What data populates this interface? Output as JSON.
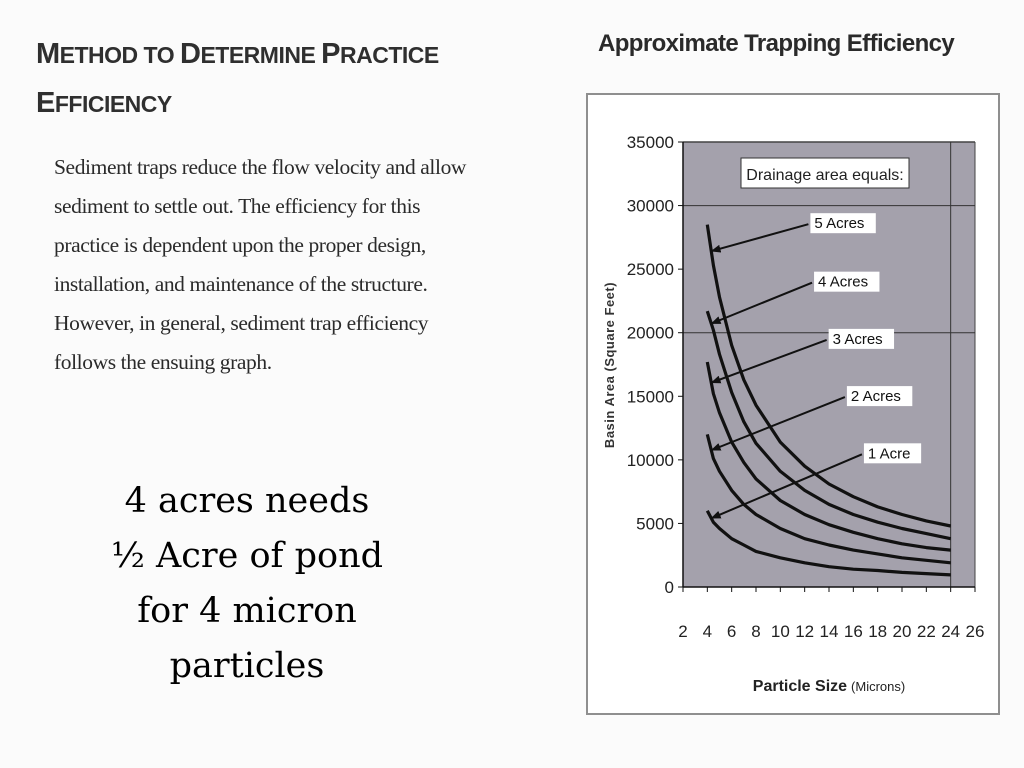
{
  "left_panel": {
    "heading_line1_a": "M",
    "heading_line1_b": "ETHOD TO ",
    "heading_line1_c": "D",
    "heading_line1_d": "ETERMINE ",
    "heading_line1_e": "P",
    "heading_line1_f": "RACTICE",
    "heading_line2_a": "E",
    "heading_line2_b": "FFICIENCY",
    "intro_text": "Sediment traps reduce the flow velocity and allow sediment to settle out.  The efficiency for this practice is dependent upon the proper design, installation, and maintenance of the structure.  However, in general, sediment trap efficiency follows the ensuing graph.",
    "callout_line1": "4 acres needs",
    "callout_line2": "½ Acre of pond",
    "callout_line3": "for 4 micron",
    "callout_line4": "particles"
  },
  "colors": {
    "plot_background": "#a4a1ac",
    "curve": "#111111",
    "frame": "#8f8f8f"
  },
  "chart_data": {
    "type": "line",
    "title": "Approximate Trapping Efficiency",
    "xlabel_main": "Particle Size",
    "xlabel_unit": "(Microns)",
    "ylabel": "Basin Area (Square Feet)",
    "legend_title": "Drainage area equals:",
    "xlim": [
      2,
      26
    ],
    "ylim": [
      0,
      35000
    ],
    "x_ticks": [
      2,
      4,
      6,
      8,
      10,
      12,
      14,
      16,
      18,
      20,
      22,
      24,
      26
    ],
    "y_ticks": [
      0,
      5000,
      10000,
      15000,
      20000,
      25000,
      30000,
      35000
    ],
    "x_tick_labels": [
      "2",
      "4",
      "6",
      "8",
      "10",
      "12",
      "14",
      "16",
      "18",
      "20",
      "22",
      "24",
      "26"
    ],
    "y_tick_labels": [
      "0",
      "5000",
      "10000",
      "15000",
      "20000",
      "25000",
      "30000",
      "35000"
    ],
    "gridlines_y": [
      20000,
      30000
    ],
    "grid_x_right": 24,
    "x": [
      4,
      4.5,
      5,
      6,
      7,
      8,
      10,
      12,
      14,
      16,
      18,
      20,
      22,
      24
    ],
    "series": [
      {
        "name": "5 Acres",
        "values": [
          28500,
          25300,
          22800,
          19000,
          16300,
          14300,
          11400,
          9500,
          8100,
          7100,
          6300,
          5700,
          5200,
          4800
        ]
      },
      {
        "name": "4 Acres",
        "values": [
          21700,
          20200,
          18300,
          15300,
          13000,
          11300,
          9100,
          7600,
          6500,
          5700,
          5100,
          4600,
          4200,
          3800
        ]
      },
      {
        "name": "3 Acres",
        "values": [
          17700,
          15200,
          13700,
          11400,
          9800,
          8500,
          6800,
          5700,
          4900,
          4300,
          3800,
          3400,
          3100,
          2900
        ]
      },
      {
        "name": "2 Acres",
        "values": [
          12000,
          10100,
          9100,
          7600,
          6500,
          5700,
          4600,
          3800,
          3300,
          2900,
          2600,
          2300,
          2100,
          1900
        ]
      },
      {
        "name": "1 Acre",
        "values": [
          6000,
          5100,
          4600,
          3800,
          3300,
          2800,
          2300,
          1900,
          1600,
          1400,
          1300,
          1150,
          1050,
          950
        ]
      }
    ],
    "labels": [
      {
        "text": "5 Acres",
        "label_x": 12.8,
        "label_y": 28300
      },
      {
        "text": "4 Acres",
        "label_x": 13.1,
        "label_y": 23700
      },
      {
        "text": "3 Acres",
        "label_x": 14.3,
        "label_y": 19200
      },
      {
        "text": "2 Acres",
        "label_x": 15.8,
        "label_y": 14700
      },
      {
        "text": "1 Acre",
        "label_x": 17.2,
        "label_y": 10200
      }
    ]
  }
}
